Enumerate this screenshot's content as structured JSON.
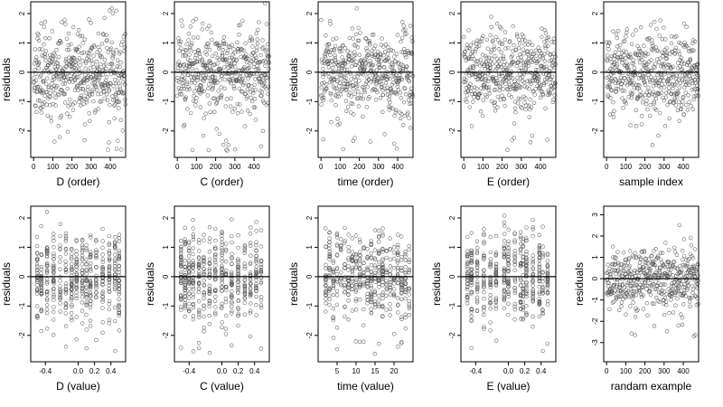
{
  "chart_data": [
    {
      "type": "scatter",
      "xlabel": "D (order)",
      "ylabel": "residuals",
      "xlim": [
        -15,
        480
      ],
      "ylim": [
        -2.9,
        2.4
      ],
      "xticks": [
        0,
        100,
        200,
        300,
        400
      ],
      "yticks": [
        -2,
        -1,
        0,
        1,
        2
      ],
      "n": 480,
      "x_mode": "index",
      "seed": 11
    },
    {
      "type": "scatter",
      "xlabel": "C (order)",
      "ylabel": "residuals",
      "xlim": [
        -15,
        480
      ],
      "ylim": [
        -2.9,
        2.4
      ],
      "xticks": [
        0,
        100,
        200,
        300,
        400
      ],
      "yticks": [
        -2,
        -1,
        0,
        1,
        2
      ],
      "n": 480,
      "x_mode": "index",
      "seed": 23
    },
    {
      "type": "scatter",
      "xlabel": "time (order)",
      "ylabel": "residuals",
      "xlim": [
        -15,
        480
      ],
      "ylim": [
        -2.9,
        2.4
      ],
      "xticks": [
        0,
        100,
        200,
        300,
        400
      ],
      "yticks": [
        -2,
        -1,
        0,
        1,
        2
      ],
      "n": 480,
      "x_mode": "index",
      "seed": 37
    },
    {
      "type": "scatter",
      "xlabel": "E (order)",
      "ylabel": "residuals",
      "xlim": [
        -15,
        480
      ],
      "ylim": [
        -2.9,
        2.4
      ],
      "xticks": [
        0,
        100,
        200,
        300,
        400
      ],
      "yticks": [
        -2,
        -1,
        0,
        1,
        2
      ],
      "n": 480,
      "x_mode": "index",
      "seed": 41
    },
    {
      "type": "scatter",
      "xlabel": "sample index",
      "ylabel": "residuals",
      "xlim": [
        -15,
        480
      ],
      "ylim": [
        -2.9,
        2.4
      ],
      "xticks": [
        0,
        100,
        200,
        300,
        400
      ],
      "yticks": [
        -2,
        -1,
        0,
        1,
        2
      ],
      "n": 480,
      "x_mode": "index",
      "seed": 53
    },
    {
      "type": "scatter",
      "xlabel": "D (value)",
      "ylabel": "residuals",
      "xlim": [
        -0.58,
        0.58
      ],
      "ylim": [
        -2.9,
        2.4
      ],
      "xticks": [
        -0.4,
        0.0,
        0.2,
        0.4
      ],
      "yticks": [
        -2,
        -1,
        0,
        1,
        2
      ],
      "n": 480,
      "x_mode": "discrete",
      "levels": [
        -0.5,
        -0.45,
        -0.38,
        -0.3,
        -0.22,
        -0.15,
        -0.08,
        -0.02,
        0.05,
        0.1,
        0.15,
        0.22,
        0.3,
        0.38,
        0.45,
        0.5
      ],
      "seed": 61
    },
    {
      "type": "scatter",
      "xlabel": "C (value)",
      "ylabel": "residuals",
      "xlim": [
        -0.58,
        0.58
      ],
      "ylim": [
        -2.9,
        2.4
      ],
      "xticks": [
        -0.4,
        0.0,
        0.2,
        0.4
      ],
      "yticks": [
        -2,
        -1,
        0,
        1,
        2
      ],
      "n": 480,
      "x_mode": "discrete",
      "levels": [
        -0.5,
        -0.45,
        -0.4,
        -0.35,
        -0.28,
        -0.22,
        -0.15,
        -0.08,
        0.0,
        0.05,
        0.12,
        0.2,
        0.28,
        0.35,
        0.42,
        0.48
      ],
      "seed": 67
    },
    {
      "type": "scatter",
      "xlabel": "time (value)",
      "ylabel": "residuals",
      "xlim": [
        0,
        25
      ],
      "ylim": [
        -2.9,
        2.4
      ],
      "xticks": [
        5,
        10,
        15,
        20
      ],
      "yticks": [
        -2,
        -1,
        0,
        1,
        2
      ],
      "n": 480,
      "x_mode": "discrete",
      "levels": [
        2,
        3,
        4,
        5,
        6,
        7,
        8,
        9,
        10,
        11,
        12,
        13,
        14,
        15,
        16,
        17,
        18,
        19,
        20,
        21,
        22,
        23,
        24
      ],
      "seed": 71
    },
    {
      "type": "scatter",
      "xlabel": "E (value)",
      "ylabel": "residuals",
      "xlim": [
        -0.58,
        0.58
      ],
      "ylim": [
        -2.9,
        2.4
      ],
      "xticks": [
        -0.4,
        0.0,
        0.2,
        0.4
      ],
      "yticks": [
        -2,
        -1,
        0,
        1,
        2
      ],
      "n": 480,
      "x_mode": "discrete",
      "levels": [
        -0.5,
        -0.45,
        -0.38,
        -0.3,
        -0.22,
        -0.15,
        -0.05,
        0.0,
        0.08,
        0.15,
        0.18,
        0.22,
        0.3,
        0.38,
        0.42,
        0.48
      ],
      "seed": 79
    },
    {
      "type": "scatter",
      "xlabel": "randam example",
      "ylabel": "residuals",
      "xlim": [
        -15,
        480
      ],
      "ylim": [
        -3.9,
        3.4
      ],
      "xticks": [
        0,
        100,
        200,
        300,
        400
      ],
      "yticks": [
        -3,
        -2,
        -1,
        0,
        1,
        2,
        3
      ],
      "n": 480,
      "x_mode": "index",
      "seed": 89
    }
  ]
}
